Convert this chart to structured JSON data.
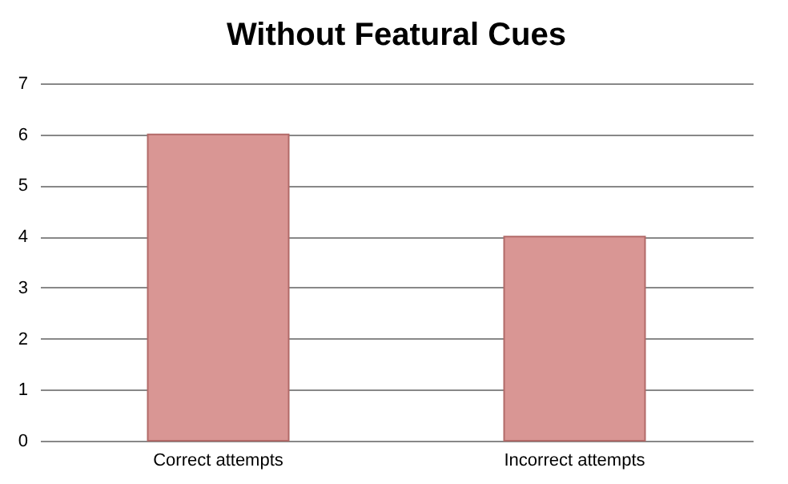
{
  "chart_data": {
    "type": "bar",
    "title": "Without Featural Cues",
    "categories": [
      "Correct attempts",
      "Incorrect attempts"
    ],
    "values": [
      6,
      4
    ],
    "color": "#d99694",
    "ylim": [
      0,
      7
    ],
    "yticks": [
      0,
      1,
      2,
      3,
      4,
      5,
      6,
      7
    ],
    "grid": "y"
  }
}
